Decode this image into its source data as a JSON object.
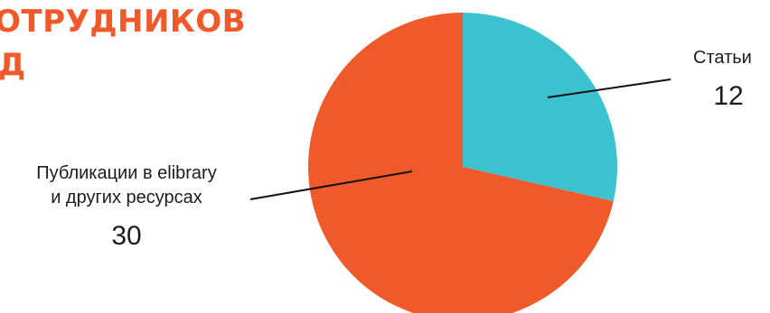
{
  "header": {
    "title_line1": "ОТРУДНИКОВ",
    "title_line2": "Д"
  },
  "colors": {
    "accent": "#f05a2b",
    "teal": "#3cc2cf",
    "text": "#1c1c1c"
  },
  "chart_data": {
    "type": "pie",
    "title": "",
    "slices": [
      {
        "label": "Статьи",
        "value": 12,
        "color": "#3cc2cf"
      },
      {
        "label": "Публикации в elibrary и других ресурсах",
        "label_lines": [
          "Публикации в elibrary",
          "и других ресурсах"
        ],
        "value": 30,
        "color": "#f05a2b"
      }
    ],
    "start_angle_deg": -90,
    "direction": "clockwise"
  }
}
